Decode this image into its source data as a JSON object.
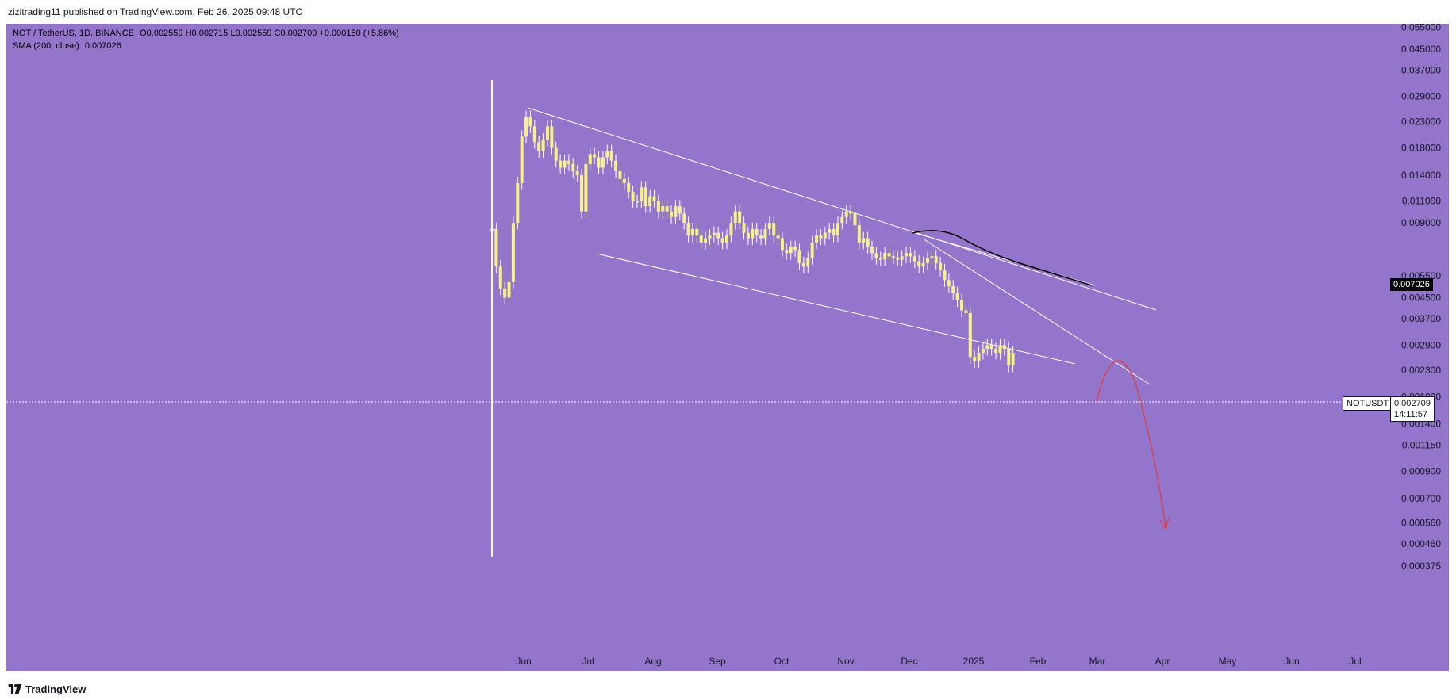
{
  "header": {
    "publisher_line": "zizitrading11 published on TradingView.com, Feb 26, 2025 09:48 UTC"
  },
  "legend": {
    "symbol_line": "NOT / TetherUS, 1D, BINANCE",
    "ohlc": "O0.002559 H0.002715 L0.002559 C0.002709 +0.000150 (+5.86%)",
    "sma_label": "SMA (200, close)",
    "sma_value": "0.007026"
  },
  "price_tags": {
    "sma": "0.007026",
    "symbol": "NOTUSDT",
    "last_price": "0.002709",
    "countdown": "14:11:57"
  },
  "footer": {
    "brand": "TradingView"
  },
  "colors": {
    "background": "#9376cc",
    "candle_body": "#f7f08a",
    "wick": "#ffffff",
    "trendline": "#ffffff",
    "sma_line": "#000000",
    "projection": "#e53935"
  },
  "chart_data": {
    "type": "candlestick",
    "title": "NOT / TetherUS, 1D, BINANCE",
    "x_tick_labels": [
      "Jun",
      "Jul",
      "Aug",
      "Sep",
      "Oct",
      "Nov",
      "Dec",
      "2025",
      "Feb",
      "Mar",
      "Apr",
      "May",
      "Jun",
      "Jul"
    ],
    "y_tick_labels": [
      "0.055000",
      "0.045000",
      "0.037000",
      "0.029000",
      "0.023000",
      "0.018000",
      "0.014000",
      "0.011000",
      "0.009000",
      "0.007026",
      "0.005500",
      "0.004500",
      "0.003700",
      "0.002900",
      "0.002300",
      "0.001800",
      "0.001400",
      "0.001150",
      "0.000900",
      "0.000700",
      "0.000560",
      "0.000460",
      "0.000375"
    ],
    "y_scale": "log",
    "ylim": [
      0.00035,
      0.058
    ],
    "grid": false,
    "series": [
      {
        "name": "NOT / TetherUS",
        "points": [
          [
            0,
            0.0085
          ],
          [
            3,
            0.006
          ],
          [
            6,
            0.0049
          ],
          [
            9,
            0.0045
          ],
          [
            12,
            0.0052
          ],
          [
            15,
            0.009
          ],
          [
            18,
            0.013
          ],
          [
            21,
            0.02
          ],
          [
            24,
            0.024
          ],
          [
            27,
            0.022
          ],
          [
            30,
            0.019
          ],
          [
            33,
            0.0175
          ],
          [
            36,
            0.0195
          ],
          [
            39,
            0.022
          ],
          [
            42,
            0.018
          ],
          [
            45,
            0.016
          ],
          [
            48,
            0.015
          ],
          [
            51,
            0.016
          ],
          [
            54,
            0.0155
          ],
          [
            57,
            0.0145
          ],
          [
            60,
            0.014
          ],
          [
            63,
            0.01
          ],
          [
            66,
            0.0155
          ],
          [
            69,
            0.017
          ],
          [
            72,
            0.0165
          ],
          [
            75,
            0.015
          ],
          [
            78,
            0.0165
          ],
          [
            81,
            0.0175
          ],
          [
            84,
            0.016
          ],
          [
            87,
            0.0145
          ],
          [
            90,
            0.0135
          ],
          [
            93,
            0.013
          ],
          [
            96,
            0.012
          ],
          [
            99,
            0.011
          ],
          [
            102,
            0.011
          ],
          [
            105,
            0.0125
          ],
          [
            108,
            0.0105
          ],
          [
            111,
            0.0115
          ],
          [
            114,
            0.011
          ],
          [
            117,
            0.01
          ],
          [
            120,
            0.0105
          ],
          [
            123,
            0.01
          ],
          [
            126,
            0.0095
          ],
          [
            129,
            0.0105
          ],
          [
            132,
            0.0098
          ],
          [
            135,
            0.009
          ],
          [
            138,
            0.008
          ],
          [
            141,
            0.0085
          ],
          [
            144,
            0.008
          ],
          [
            147,
            0.0075
          ],
          [
            150,
            0.0078
          ],
          [
            153,
            0.008
          ],
          [
            156,
            0.0082
          ],
          [
            159,
            0.0078
          ],
          [
            162,
            0.0075
          ],
          [
            165,
            0.008
          ],
          [
            168,
            0.009
          ],
          [
            171,
            0.01
          ],
          [
            174,
            0.009
          ],
          [
            177,
            0.0082
          ],
          [
            180,
            0.0078
          ],
          [
            183,
            0.0085
          ],
          [
            186,
            0.008
          ],
          [
            189,
            0.0078
          ],
          [
            192,
            0.0085
          ],
          [
            195,
            0.009
          ],
          [
            198,
            0.008
          ],
          [
            201,
            0.0078
          ],
          [
            204,
            0.007
          ],
          [
            207,
            0.0068
          ],
          [
            210,
            0.0072
          ],
          [
            213,
            0.007
          ],
          [
            216,
            0.0062
          ],
          [
            219,
            0.006
          ],
          [
            222,
            0.0065
          ],
          [
            225,
            0.0075
          ],
          [
            228,
            0.008
          ],
          [
            231,
            0.0078
          ],
          [
            234,
            0.0082
          ],
          [
            237,
            0.0085
          ],
          [
            240,
            0.008
          ],
          [
            243,
            0.009
          ],
          [
            246,
            0.0095
          ],
          [
            249,
            0.01
          ],
          [
            252,
            0.0098
          ],
          [
            255,
            0.0088
          ],
          [
            258,
            0.0075
          ],
          [
            261,
            0.0078
          ],
          [
            264,
            0.0072
          ],
          [
            267,
            0.0068
          ],
          [
            270,
            0.0065
          ],
          [
            273,
            0.0064
          ],
          [
            276,
            0.0068
          ],
          [
            279,
            0.0066
          ],
          [
            282,
            0.0065
          ],
          [
            285,
            0.0064
          ],
          [
            288,
            0.0066
          ],
          [
            291,
            0.0068
          ],
          [
            294,
            0.0066
          ],
          [
            297,
            0.0063
          ],
          [
            300,
            0.006
          ],
          [
            303,
            0.0062
          ],
          [
            306,
            0.0065
          ],
          [
            309,
            0.0066
          ],
          [
            312,
            0.0062
          ],
          [
            315,
            0.0058
          ],
          [
            318,
            0.0053
          ],
          [
            321,
            0.005
          ],
          [
            324,
            0.0047
          ],
          [
            327,
            0.0044
          ],
          [
            330,
            0.004
          ],
          [
            333,
            0.0039
          ],
          [
            336,
            0.0026
          ],
          [
            339,
            0.0025
          ],
          [
            342,
            0.0027
          ],
          [
            345,
            0.0028
          ],
          [
            348,
            0.0029
          ],
          [
            351,
            0.0028
          ],
          [
            354,
            0.0027
          ],
          [
            357,
            0.0029
          ],
          [
            360,
            0.0028
          ],
          [
            363,
            0.0024
          ],
          [
            366,
            0.0027
          ]
        ]
      },
      {
        "name": "SMA (200, close)",
        "last_value": 0.007026
      }
    ]
  }
}
